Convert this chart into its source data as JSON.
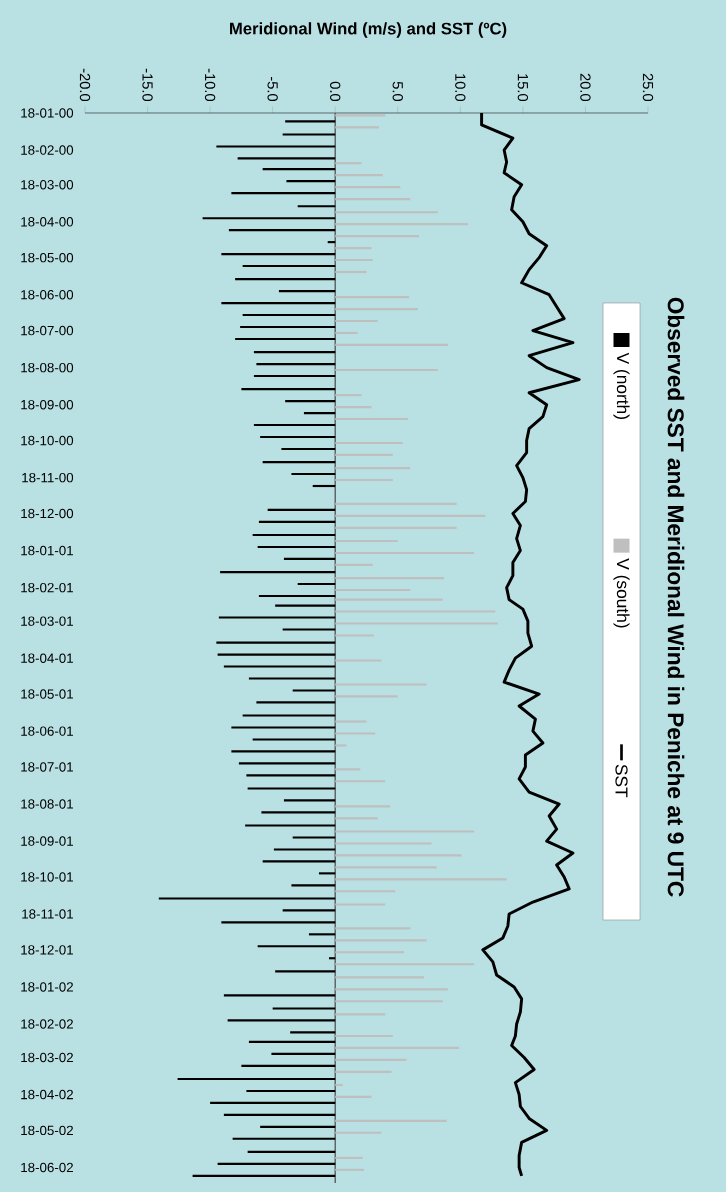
{
  "chart_data": {
    "type": "bar",
    "title": "Observed SST and Meridional Wind in Peniche at 9 UTC",
    "xlabel": "Meridional Wind (m/s) and SST (ºC)",
    "orientation": "horizontal",
    "ylim": [
      "2002-07-01",
      "2000-01-18"
    ],
    "yticks": [
      {
        "value": "2000-01-18",
        "label": "18-01-00"
      },
      {
        "value": "2000-02-18",
        "label": "18-02-00"
      },
      {
        "value": "2000-03-18",
        "label": "18-03-00"
      },
      {
        "value": "2000-04-18",
        "label": "18-04-00"
      },
      {
        "value": "2000-05-18",
        "label": "18-05-00"
      },
      {
        "value": "2000-06-18",
        "label": "18-06-00"
      },
      {
        "value": "2000-07-18",
        "label": "18-07-00"
      },
      {
        "value": "2000-08-18",
        "label": "18-08-00"
      },
      {
        "value": "2000-09-18",
        "label": "18-09-00"
      },
      {
        "value": "2000-10-18",
        "label": "18-10-00"
      },
      {
        "value": "2000-11-18",
        "label": "18-11-00"
      },
      {
        "value": "2000-12-18",
        "label": "18-12-00"
      },
      {
        "value": "2001-01-18",
        "label": "18-01-01"
      },
      {
        "value": "2001-02-18",
        "label": "18-02-01"
      },
      {
        "value": "2001-03-18",
        "label": "18-03-01"
      },
      {
        "value": "2001-04-18",
        "label": "18-04-01"
      },
      {
        "value": "2001-05-18",
        "label": "18-05-01"
      },
      {
        "value": "2001-06-18",
        "label": "18-06-01"
      },
      {
        "value": "2001-07-18",
        "label": "18-07-01"
      },
      {
        "value": "2001-08-18",
        "label": "18-08-01"
      },
      {
        "value": "2001-09-18",
        "label": "18-09-01"
      },
      {
        "value": "2001-10-18",
        "label": "18-10-01"
      },
      {
        "value": "2001-11-18",
        "label": "18-11-01"
      },
      {
        "value": "2001-12-18",
        "label": "18-12-01"
      },
      {
        "value": "2002-01-18",
        "label": "18-01-02"
      },
      {
        "value": "2002-02-18",
        "label": "18-02-02"
      },
      {
        "value": "2002-03-18",
        "label": "18-03-02"
      },
      {
        "value": "2002-04-18",
        "label": "18-04-02"
      },
      {
        "value": "2002-05-18",
        "label": "18-05-02"
      },
      {
        "value": "2002-06-18",
        "label": "18-06-02"
      }
    ],
    "xlim": [
      -20,
      25
    ],
    "xticks": [
      {
        "value": -20,
        "label": "-20.0"
      },
      {
        "value": -15,
        "label": "-15.0"
      },
      {
        "value": -10,
        "label": "-10.0"
      },
      {
        "value": -5,
        "label": "-5.0"
      },
      {
        "value": 0,
        "label": "0.0"
      },
      {
        "value": 5,
        "label": "5.0"
      },
      {
        "value": 10,
        "label": "10.0"
      },
      {
        "value": 15,
        "label": "15.0"
      },
      {
        "value": 20,
        "label": "20.0"
      },
      {
        "value": 25,
        "label": "25.0"
      }
    ],
    "legend": "right",
    "ref_lines": [
      {
        "axis": "x",
        "value": 0,
        "color": "#555555"
      }
    ],
    "series": [
      {
        "name": "V (north)",
        "color": "#000000",
        "x": [
          "2000-01-25",
          "2000-02-05",
          "2000-02-15",
          "2000-02-25",
          "2000-03-05",
          "2000-03-15",
          "2000-03-25",
          "2000-04-05",
          "2000-04-15",
          "2000-04-25",
          "2000-05-05",
          "2000-05-15",
          "2000-05-25",
          "2000-06-05",
          "2000-06-15",
          "2000-06-25",
          "2000-07-05",
          "2000-07-15",
          "2000-07-25",
          "2000-08-05",
          "2000-08-15",
          "2000-08-25",
          "2000-09-05",
          "2000-09-15",
          "2000-09-25",
          "2000-10-05",
          "2000-10-15",
          "2000-10-25",
          "2000-11-05",
          "2000-11-15",
          "2000-11-25",
          "2000-12-15",
          "2000-12-25",
          "2001-01-05",
          "2001-01-15",
          "2001-01-25",
          "2001-02-05",
          "2001-02-15",
          "2001-02-25",
          "2001-03-05",
          "2001-03-15",
          "2001-03-25",
          "2001-04-05",
          "2001-04-15",
          "2001-04-25",
          "2001-05-05",
          "2001-05-15",
          "2001-05-25",
          "2001-06-05",
          "2001-06-15",
          "2001-06-25",
          "2001-07-05",
          "2001-07-15",
          "2001-07-25",
          "2001-08-05",
          "2001-08-15",
          "2001-08-25",
          "2001-09-05",
          "2001-09-15",
          "2001-09-25",
          "2001-10-05",
          "2001-10-15",
          "2001-10-25",
          "2001-11-05",
          "2001-11-15",
          "2001-11-25",
          "2001-12-05",
          "2001-12-15",
          "2001-12-25",
          "2002-01-05",
          "2002-01-25",
          "2002-02-05",
          "2002-02-15",
          "2002-02-25",
          "2002-03-05",
          "2002-03-15",
          "2002-03-25",
          "2002-04-05",
          "2002-04-15",
          "2002-04-25",
          "2002-05-05",
          "2002-05-15",
          "2002-05-25",
          "2002-06-05",
          "2002-06-15",
          "2002-06-25"
        ],
        "values": [
          -4.0,
          -4.2,
          -9.5,
          -7.8,
          -5.8,
          -3.9,
          -8.3,
          -3.0,
          -10.6,
          -8.5,
          -0.6,
          -9.1,
          -7.4,
          -8.0,
          -4.5,
          -9.1,
          -7.4,
          -7.6,
          -8.0,
          -6.5,
          -6.3,
          -6.5,
          -7.5,
          -4.0,
          -2.5,
          -6.5,
          -6.0,
          -4.3,
          -5.8,
          -3.5,
          -1.8,
          -5.4,
          -6.1,
          -6.6,
          -6.2,
          -4.1,
          -9.2,
          -3.0,
          -6.1,
          -4.8,
          -9.3,
          -4.2,
          -9.5,
          -9.4,
          -8.9,
          -6.9,
          -3.4,
          -6.3,
          -7.4,
          -8.3,
          -6.6,
          -8.3,
          -7.7,
          -7.1,
          -7.0,
          -4.1,
          -5.9,
          -7.2,
          -3.4,
          -4.9,
          -5.8,
          -1.3,
          -3.5,
          -14.1,
          -4.2,
          -9.1,
          -2.1,
          -6.2,
          -0.5,
          -4.8,
          -8.9,
          -5.0,
          -8.6,
          -3.6,
          -6.9,
          -5.1,
          -7.5,
          -12.6,
          -7.1,
          -10.0,
          -8.9,
          -6.0,
          -8.2,
          -7.0,
          -9.4,
          -11.4
        ]
      },
      {
        "name": "V (south)",
        "color": "#bfbfbf",
        "x": [
          "2000-01-20",
          "2000-01-30",
          "2000-02-29",
          "2000-03-10",
          "2000-03-20",
          "2000-03-30",
          "2000-04-10",
          "2000-04-20",
          "2000-04-30",
          "2000-05-10",
          "2000-05-20",
          "2000-05-30",
          "2000-06-20",
          "2000-06-30",
          "2000-07-10",
          "2000-07-20",
          "2000-07-30",
          "2000-08-20",
          "2000-09-10",
          "2000-09-20",
          "2000-09-30",
          "2000-10-20",
          "2000-10-30",
          "2000-11-10",
          "2000-11-20",
          "2000-12-10",
          "2000-12-20",
          "2000-12-30",
          "2001-01-10",
          "2001-01-20",
          "2001-01-30",
          "2001-02-10",
          "2001-02-20",
          "2001-02-28",
          "2001-03-10",
          "2001-03-20",
          "2001-03-30",
          "2001-04-20",
          "2001-05-10",
          "2001-05-20",
          "2001-06-10",
          "2001-06-20",
          "2001-06-30",
          "2001-07-20",
          "2001-07-30",
          "2001-08-20",
          "2001-08-30",
          "2001-09-10",
          "2001-09-20",
          "2001-09-30",
          "2001-10-10",
          "2001-10-20",
          "2001-10-30",
          "2001-11-10",
          "2001-11-30",
          "2001-12-10",
          "2001-12-20",
          "2001-12-30",
          "2002-01-10",
          "2002-01-20",
          "2002-01-30",
          "2002-02-10",
          "2002-02-28",
          "2002-03-10",
          "2002-03-20",
          "2002-03-30",
          "2002-04-10",
          "2002-04-20",
          "2002-05-10",
          "2002-05-20",
          "2002-06-10",
          "2002-06-20"
        ],
        "values": [
          4.0,
          3.5,
          2.1,
          3.8,
          5.2,
          6.0,
          8.2,
          10.6,
          6.7,
          2.9,
          3.0,
          2.5,
          5.9,
          6.6,
          3.4,
          1.8,
          9.0,
          8.2,
          2.1,
          2.9,
          5.8,
          5.4,
          4.6,
          6.0,
          4.6,
          9.7,
          12.0,
          9.7,
          5.0,
          11.1,
          3.0,
          8.7,
          6.0,
          8.6,
          12.8,
          13.0,
          3.1,
          3.7,
          7.3,
          5.0,
          2.5,
          3.2,
          0.9,
          2.0,
          4.0,
          4.4,
          3.4,
          11.1,
          7.7,
          10.1,
          8.1,
          13.7,
          4.8,
          4.0,
          6.0,
          7.3,
          5.5,
          11.1,
          7.1,
          9.0,
          8.6,
          4.0,
          4.6,
          9.9,
          5.7,
          4.5,
          0.6,
          2.9,
          8.9,
          3.7,
          2.2,
          2.3
        ]
      },
      {
        "name": "SST",
        "type": "line",
        "color": "#000000",
        "x": [
          "2000-01-18",
          "2000-01-28",
          "2000-02-08",
          "2000-02-18",
          "2000-02-28",
          "2000-03-08",
          "2000-03-18",
          "2000-03-28",
          "2000-04-08",
          "2000-04-18",
          "2000-04-28",
          "2000-05-08",
          "2000-05-18",
          "2000-05-28",
          "2000-06-08",
          "2000-06-18",
          "2000-06-28",
          "2000-07-08",
          "2000-07-18",
          "2000-07-28",
          "2000-08-08",
          "2000-08-18",
          "2000-08-28",
          "2000-09-08",
          "2000-09-18",
          "2000-09-28",
          "2000-10-08",
          "2000-10-18",
          "2000-10-28",
          "2000-11-08",
          "2000-11-18",
          "2000-11-28",
          "2000-12-08",
          "2000-12-18",
          "2000-12-28",
          "2001-01-08",
          "2001-01-18",
          "2001-01-28",
          "2001-02-08",
          "2001-02-18",
          "2001-02-28",
          "2001-03-08",
          "2001-03-18",
          "2001-03-28",
          "2001-04-08",
          "2001-04-18",
          "2001-04-28",
          "2001-05-08",
          "2001-05-18",
          "2001-05-28",
          "2001-06-08",
          "2001-06-18",
          "2001-06-28",
          "2001-07-08",
          "2001-07-18",
          "2001-07-28",
          "2001-08-08",
          "2001-08-18",
          "2001-08-28",
          "2001-09-08",
          "2001-09-18",
          "2001-09-28",
          "2001-10-08",
          "2001-10-18",
          "2001-10-28",
          "2001-11-08",
          "2001-11-18",
          "2001-11-28",
          "2001-12-08",
          "2001-12-18",
          "2001-12-28",
          "2002-01-08",
          "2002-01-18",
          "2002-01-28",
          "2002-02-08",
          "2002-02-18",
          "2002-02-28",
          "2002-03-08",
          "2002-03-18",
          "2002-03-28",
          "2002-04-08",
          "2002-04-18",
          "2002-04-28",
          "2002-05-08",
          "2002-05-18",
          "2002-05-28",
          "2002-06-08",
          "2002-06-18",
          "2002-06-25"
        ],
        "values": [
          11.7,
          11.7,
          14.2,
          13.5,
          13.7,
          13.5,
          14.9,
          14.3,
          14.1,
          15.0,
          15.5,
          16.9,
          16.3,
          15.5,
          14.9,
          17.1,
          17.7,
          18.3,
          15.8,
          19.0,
          15.5,
          16.9,
          19.5,
          15.5,
          16.9,
          16.6,
          15.5,
          15.3,
          15.3,
          14.5,
          15.0,
          15.3,
          15.2,
          14.2,
          14.8,
          14.5,
          14.8,
          14.2,
          14.2,
          13.7,
          13.9,
          15.0,
          15.4,
          15.4,
          15.7,
          14.4,
          13.9,
          13.5,
          16.3,
          14.7,
          16.0,
          15.8,
          16.6,
          15.2,
          15.2,
          14.7,
          15.5,
          17.9,
          17.1,
          17.7,
          16.9,
          19.0,
          17.7,
          18.3,
          18.7,
          15.8,
          13.9,
          13.8,
          13.4,
          11.8,
          12.6,
          12.9,
          14.3,
          14.9,
          14.8,
          14.5,
          14.4,
          14.1,
          15.1,
          15.9,
          14.4,
          14.7,
          14.8,
          15.5,
          16.9,
          14.9,
          14.7,
          14.7,
          14.9
        ]
      }
    ]
  }
}
